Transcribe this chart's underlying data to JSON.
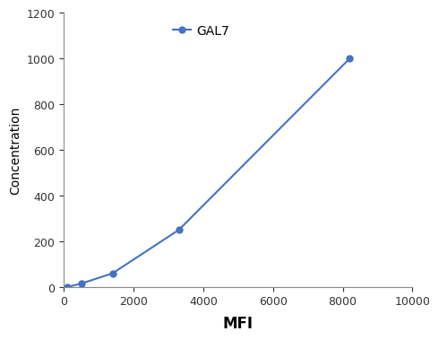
{
  "x": [
    100,
    500,
    1400,
    3300,
    8200
  ],
  "y": [
    0,
    15,
    60,
    250,
    1000
  ],
  "line_color": "#4472C4",
  "marker": "o",
  "marker_size": 5,
  "label": "GAL7",
  "xlabel": "MFI",
  "ylabel": "Concentration",
  "xlim": [
    0,
    10000
  ],
  "ylim": [
    0,
    1200
  ],
  "xticks": [
    0,
    2000,
    4000,
    6000,
    8000,
    10000
  ],
  "yticks": [
    0,
    200,
    400,
    600,
    800,
    1000,
    1200
  ],
  "xlabel_fontsize": 12,
  "ylabel_fontsize": 10,
  "tick_fontsize": 9,
  "legend_fontsize": 10,
  "background_color": "#ffffff"
}
